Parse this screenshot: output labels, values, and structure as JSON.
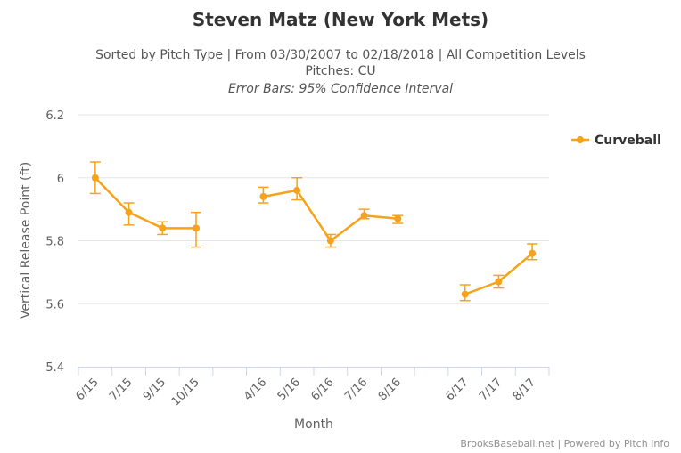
{
  "chart_data": {
    "type": "line",
    "title": "Steven Matz (New York Mets)",
    "subtitle_lines": [
      "Sorted by Pitch Type | From 03/30/2007 to 02/18/2018 | All Competition Levels",
      "Pitches: CU",
      "Error Bars: 95% Confidence Interval"
    ],
    "xlabel": "Month",
    "ylabel": "Vertical Release Point (ft)",
    "ylim": [
      5.4,
      6.2
    ],
    "yticks": [
      "5.4",
      "5.6",
      "5.8",
      "6",
      "6.2"
    ],
    "ytick_values": [
      5.4,
      5.6,
      5.8,
      6.0,
      6.2
    ],
    "grid": true,
    "legend_position": "top-right",
    "categories": [
      "6/15",
      "7/15",
      "9/15",
      "10/15",
      "",
      "4/16",
      "5/16",
      "6/16",
      "7/16",
      "8/16",
      "",
      "6/17",
      "7/17",
      "8/17"
    ],
    "series": [
      {
        "name": "Curveball",
        "color": "#f7a21b",
        "values": [
          6.0,
          5.89,
          5.84,
          5.84,
          null,
          5.94,
          5.96,
          5.8,
          5.88,
          5.87,
          null,
          5.63,
          5.67,
          5.76
        ],
        "error_low": [
          5.95,
          5.85,
          5.82,
          5.78,
          null,
          5.92,
          5.93,
          5.78,
          5.87,
          5.855,
          null,
          5.61,
          5.65,
          5.74
        ],
        "error_high": [
          6.05,
          5.92,
          5.86,
          5.89,
          null,
          5.97,
          6.0,
          5.82,
          5.9,
          5.88,
          null,
          5.66,
          5.69,
          5.79
        ]
      }
    ]
  },
  "credit": "BrooksBaseball.net | Powered by Pitch Info"
}
